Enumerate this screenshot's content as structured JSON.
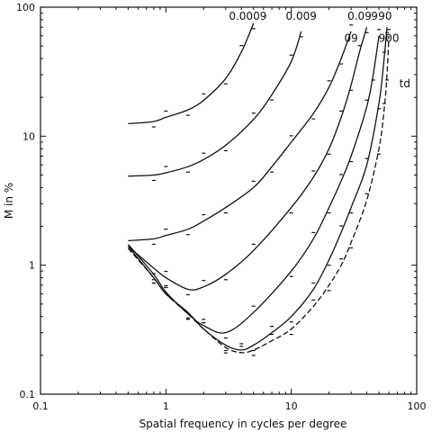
{
  "chart_data": {
    "type": "line",
    "xlabel": "Spatial frequency in cycles per degree",
    "ylabel": "M in %",
    "x_scale": "log",
    "y_scale": "log",
    "xlim": [
      0.1,
      100
    ],
    "ylim": [
      0.1,
      100
    ],
    "x_ticks": [
      {
        "value": 0.1,
        "label": "0.1"
      },
      {
        "value": 1,
        "label": "1"
      },
      {
        "value": 10,
        "label": "10"
      },
      {
        "value": 100,
        "label": "100"
      }
    ],
    "y_ticks": [
      {
        "value": 0.1,
        "label": "0.1"
      },
      {
        "value": 1,
        "label": "1"
      },
      {
        "value": 10,
        "label": "10"
      },
      {
        "value": 100,
        "label": "100"
      }
    ],
    "unit_label": "td",
    "series": [
      {
        "name": "0.0009",
        "label_pos": [
          4.5,
          80
        ],
        "points": [
          [
            0.5,
            12.5
          ],
          [
            0.8,
            13
          ],
          [
            1,
            14
          ],
          [
            1.5,
            16
          ],
          [
            2,
            19
          ],
          [
            3,
            28
          ],
          [
            4,
            45
          ],
          [
            5,
            75
          ]
        ]
      },
      {
        "name": "0.009",
        "label_pos": [
          12,
          80
        ],
        "points": [
          [
            0.5,
            4.9
          ],
          [
            0.8,
            5
          ],
          [
            1,
            5.2
          ],
          [
            1.5,
            5.8
          ],
          [
            2,
            6.6
          ],
          [
            3,
            8.5
          ],
          [
            5,
            13.5
          ],
          [
            7,
            21
          ],
          [
            10,
            38
          ],
          [
            12,
            65
          ]
        ]
      },
      {
        "name": "0.09",
        "label_pos": [
          35,
          80
        ],
        "points": [
          [
            0.5,
            1.55
          ],
          [
            0.8,
            1.6
          ],
          [
            1,
            1.7
          ],
          [
            1.5,
            1.9
          ],
          [
            2,
            2.2
          ],
          [
            3,
            2.8
          ],
          [
            5,
            4
          ],
          [
            7,
            5.8
          ],
          [
            10,
            9
          ],
          [
            15,
            15
          ],
          [
            20,
            24
          ],
          [
            25,
            40
          ],
          [
            30,
            65
          ]
        ]
      },
      {
        "name": "09",
        "label_pos": [
          30,
          54
        ],
        "points": [
          [
            0.5,
            1.4
          ],
          [
            0.8,
            0.95
          ],
          [
            1,
            0.8
          ],
          [
            1.5,
            0.65
          ],
          [
            2,
            0.68
          ],
          [
            3,
            0.85
          ],
          [
            5,
            1.3
          ],
          [
            10,
            2.8
          ],
          [
            15,
            4.8
          ],
          [
            20,
            8
          ],
          [
            25,
            14
          ],
          [
            30,
            25
          ],
          [
            35,
            45
          ],
          [
            40,
            70
          ]
        ]
      },
      {
        "name": "9",
        "label_pos": [
          46,
          80
        ],
        "points": [
          [
            0.5,
            1.45
          ],
          [
            0.8,
            0.85
          ],
          [
            1,
            0.62
          ],
          [
            1.5,
            0.42
          ],
          [
            2,
            0.34
          ],
          [
            3,
            0.3
          ],
          [
            5,
            0.43
          ],
          [
            10,
            0.9
          ],
          [
            15,
            1.6
          ],
          [
            20,
            2.8
          ],
          [
            25,
            4.5
          ],
          [
            30,
            7
          ],
          [
            40,
            17
          ],
          [
            45,
            30
          ],
          [
            50,
            60
          ]
        ]
      },
      {
        "name": "90",
        "label_pos": [
          56,
          80
        ],
        "points": [
          [
            0.5,
            1.4
          ],
          [
            0.8,
            0.8
          ],
          [
            1,
            0.6
          ],
          [
            1.5,
            0.43
          ],
          [
            2,
            0.32
          ],
          [
            3,
            0.24
          ],
          [
            4,
            0.22
          ],
          [
            5,
            0.24
          ],
          [
            7,
            0.3
          ],
          [
            10,
            0.4
          ],
          [
            15,
            0.65
          ],
          [
            20,
            1.1
          ],
          [
            25,
            1.8
          ],
          [
            30,
            2.8
          ],
          [
            40,
            6
          ],
          [
            50,
            18
          ],
          [
            55,
            40
          ],
          [
            58,
            70
          ]
        ]
      },
      {
        "name": "900",
        "label_pos": [
          60,
          54
        ],
        "points": [
          [
            0.5,
            1.35
          ],
          [
            0.8,
            0.8
          ],
          [
            1,
            0.6
          ],
          [
            1.5,
            0.42
          ],
          [
            2,
            0.32
          ],
          [
            3,
            0.23
          ],
          [
            4,
            0.21
          ],
          [
            5,
            0.22
          ],
          [
            7,
            0.26
          ],
          [
            10,
            0.32
          ],
          [
            15,
            0.48
          ],
          [
            20,
            0.7
          ],
          [
            25,
            1
          ],
          [
            30,
            1.5
          ],
          [
            40,
            3.2
          ],
          [
            50,
            8
          ],
          [
            55,
            16
          ],
          [
            58,
            30
          ],
          [
            60,
            60
          ]
        ]
      }
    ]
  }
}
